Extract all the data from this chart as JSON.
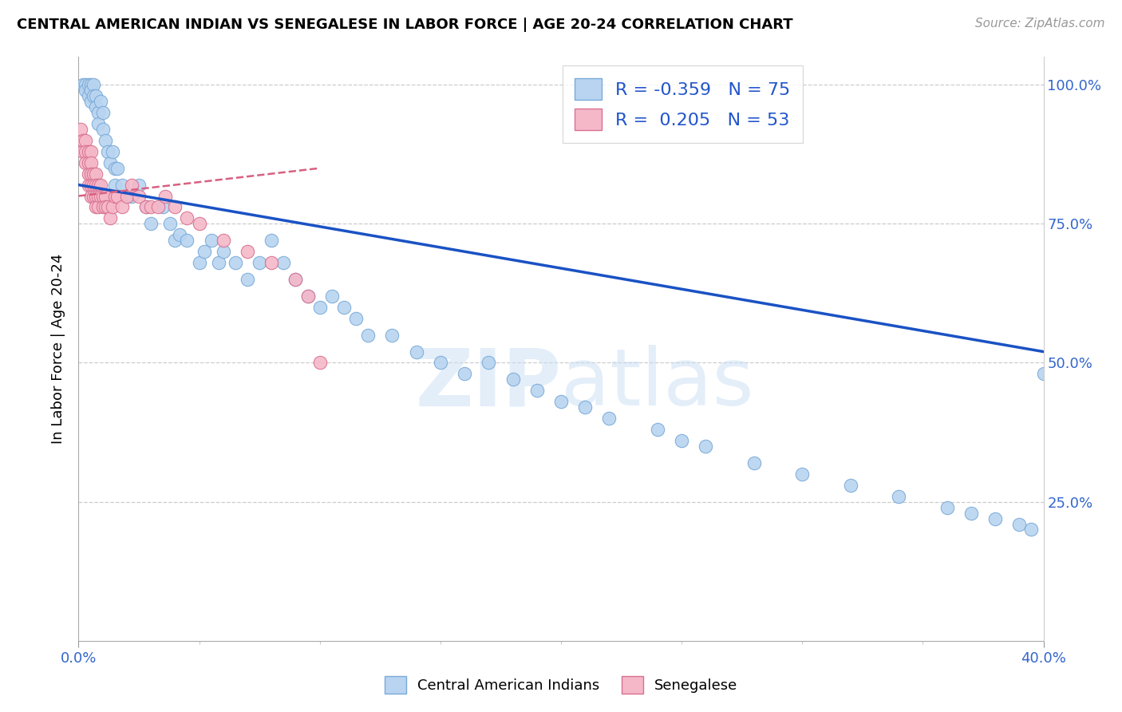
{
  "title": "CENTRAL AMERICAN INDIAN VS SENEGALESE IN LABOR FORCE | AGE 20-24 CORRELATION CHART",
  "source": "Source: ZipAtlas.com",
  "ylabel": "In Labor Force | Age 20-24",
  "xlim": [
    0.0,
    0.4
  ],
  "ylim": [
    0.0,
    1.05
  ],
  "ytick_values": [
    0.25,
    0.5,
    0.75,
    1.0
  ],
  "R1": -0.359,
  "N1": 75,
  "R2": 0.205,
  "N2": 53,
  "color_blue": "#b8d4f0",
  "color_blue_edge": "#7aaad8",
  "color_blue_line": "#1a52c4",
  "color_pink": "#f5b8c8",
  "color_pink_edge": "#d87090",
  "color_pink_line": "#d86080",
  "watermark_zi": "ZI",
  "watermark_p": "P",
  "watermark_atlas": "atlas",
  "blue_x": [
    0.002,
    0.003,
    0.003,
    0.004,
    0.004,
    0.005,
    0.005,
    0.005,
    0.006,
    0.006,
    0.007,
    0.007,
    0.008,
    0.008,
    0.009,
    0.01,
    0.01,
    0.011,
    0.012,
    0.013,
    0.014,
    0.015,
    0.015,
    0.016,
    0.018,
    0.02,
    0.022,
    0.025,
    0.028,
    0.03,
    0.035,
    0.038,
    0.04,
    0.042,
    0.045,
    0.05,
    0.052,
    0.055,
    0.058,
    0.06,
    0.065,
    0.07,
    0.075,
    0.08,
    0.085,
    0.09,
    0.095,
    0.1,
    0.105,
    0.11,
    0.115,
    0.12,
    0.13,
    0.14,
    0.15,
    0.16,
    0.17,
    0.18,
    0.19,
    0.2,
    0.21,
    0.22,
    0.24,
    0.25,
    0.26,
    0.28,
    0.3,
    0.32,
    0.34,
    0.36,
    0.37,
    0.38,
    0.39,
    0.395,
    0.4
  ],
  "blue_y": [
    1.0,
    1.0,
    0.99,
    1.0,
    0.98,
    1.0,
    0.99,
    0.97,
    1.0,
    0.98,
    0.98,
    0.96,
    0.95,
    0.93,
    0.97,
    0.95,
    0.92,
    0.9,
    0.88,
    0.86,
    0.88,
    0.85,
    0.82,
    0.85,
    0.82,
    0.8,
    0.8,
    0.82,
    0.78,
    0.75,
    0.78,
    0.75,
    0.72,
    0.73,
    0.72,
    0.68,
    0.7,
    0.72,
    0.68,
    0.7,
    0.68,
    0.65,
    0.68,
    0.72,
    0.68,
    0.65,
    0.62,
    0.6,
    0.62,
    0.6,
    0.58,
    0.55,
    0.55,
    0.52,
    0.5,
    0.48,
    0.5,
    0.47,
    0.45,
    0.43,
    0.42,
    0.4,
    0.38,
    0.36,
    0.35,
    0.32,
    0.3,
    0.28,
    0.26,
    0.24,
    0.23,
    0.22,
    0.21,
    0.2,
    0.48
  ],
  "pink_x": [
    0.001,
    0.002,
    0.002,
    0.003,
    0.003,
    0.003,
    0.004,
    0.004,
    0.004,
    0.004,
    0.005,
    0.005,
    0.005,
    0.005,
    0.005,
    0.006,
    0.006,
    0.006,
    0.007,
    0.007,
    0.007,
    0.007,
    0.008,
    0.008,
    0.008,
    0.009,
    0.009,
    0.01,
    0.01,
    0.011,
    0.011,
    0.012,
    0.013,
    0.014,
    0.015,
    0.016,
    0.018,
    0.02,
    0.022,
    0.025,
    0.028,
    0.03,
    0.033,
    0.036,
    0.04,
    0.045,
    0.05,
    0.06,
    0.07,
    0.08,
    0.09,
    0.095,
    0.1
  ],
  "pink_y": [
    0.92,
    0.9,
    0.88,
    0.9,
    0.88,
    0.86,
    0.88,
    0.86,
    0.84,
    0.82,
    0.88,
    0.86,
    0.84,
    0.82,
    0.8,
    0.84,
    0.82,
    0.8,
    0.84,
    0.82,
    0.8,
    0.78,
    0.82,
    0.8,
    0.78,
    0.82,
    0.8,
    0.8,
    0.78,
    0.8,
    0.78,
    0.78,
    0.76,
    0.78,
    0.8,
    0.8,
    0.78,
    0.8,
    0.82,
    0.8,
    0.78,
    0.78,
    0.78,
    0.8,
    0.78,
    0.76,
    0.75,
    0.72,
    0.7,
    0.68,
    0.65,
    0.62,
    0.5
  ],
  "blue_trend_x": [
    0.0,
    0.4
  ],
  "blue_trend_y": [
    0.82,
    0.52
  ],
  "pink_trend_x": [
    0.0,
    0.1
  ],
  "pink_trend_y": [
    0.8,
    0.85
  ]
}
